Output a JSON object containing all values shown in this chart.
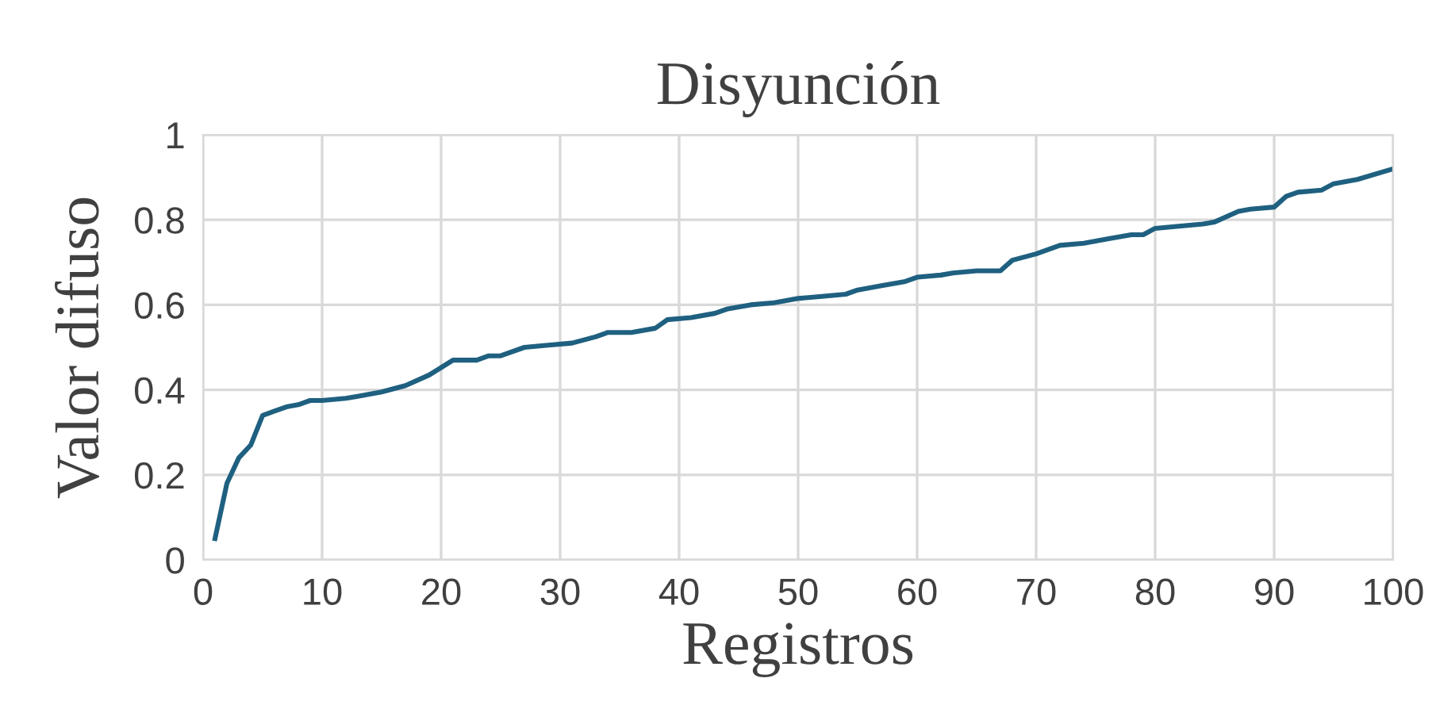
{
  "chart_data": {
    "type": "line",
    "title": "Disyunción",
    "xlabel": "Registros",
    "ylabel": "Valor difuso",
    "x": [
      1,
      2,
      3,
      4,
      5,
      6,
      7,
      8,
      9,
      10,
      12,
      13,
      15,
      17,
      19,
      21,
      23,
      24,
      25,
      27,
      29,
      31,
      33,
      34,
      36,
      38,
      39,
      41,
      43,
      44,
      46,
      48,
      50,
      52,
      54,
      55,
      57,
      59,
      60,
      62,
      63,
      65,
      67,
      68,
      70,
      72,
      74,
      76,
      78,
      79,
      80,
      82,
      84,
      85,
      87,
      88,
      90,
      91,
      92,
      94,
      95,
      97,
      100
    ],
    "series": [
      {
        "color": "#1f6080",
        "values": [
          0.05,
          0.18,
          0.24,
          0.27,
          0.34,
          0.35,
          0.36,
          0.365,
          0.375,
          0.375,
          0.38,
          0.385,
          0.395,
          0.41,
          0.435,
          0.47,
          0.47,
          0.48,
          0.48,
          0.5,
          0.505,
          0.51,
          0.525,
          0.535,
          0.535,
          0.545,
          0.565,
          0.57,
          0.58,
          0.59,
          0.6,
          0.605,
          0.615,
          0.62,
          0.625,
          0.635,
          0.645,
          0.655,
          0.665,
          0.67,
          0.675,
          0.68,
          0.68,
          0.705,
          0.72,
          0.74,
          0.745,
          0.755,
          0.765,
          0.765,
          0.78,
          0.785,
          0.79,
          0.795,
          0.82,
          0.825,
          0.83,
          0.855,
          0.865,
          0.87,
          0.885,
          0.895,
          0.92
        ]
      }
    ],
    "xlim": [
      0,
      100
    ],
    "xticks": [
      0,
      10,
      20,
      30,
      40,
      50,
      60,
      70,
      80,
      90,
      100
    ],
    "ylim": [
      0,
      1
    ],
    "yticks": [
      0,
      {
        "value": 0.2,
        "label": "0.2"
      },
      {
        "value": 0.4,
        "label": "0.4"
      },
      {
        "value": 0.6,
        "label": "0.6"
      },
      {
        "value": 0.8,
        "label": "0.8"
      },
      1
    ],
    "grid": true,
    "legend": false,
    "marker": "none",
    "line_style": "solid"
  }
}
